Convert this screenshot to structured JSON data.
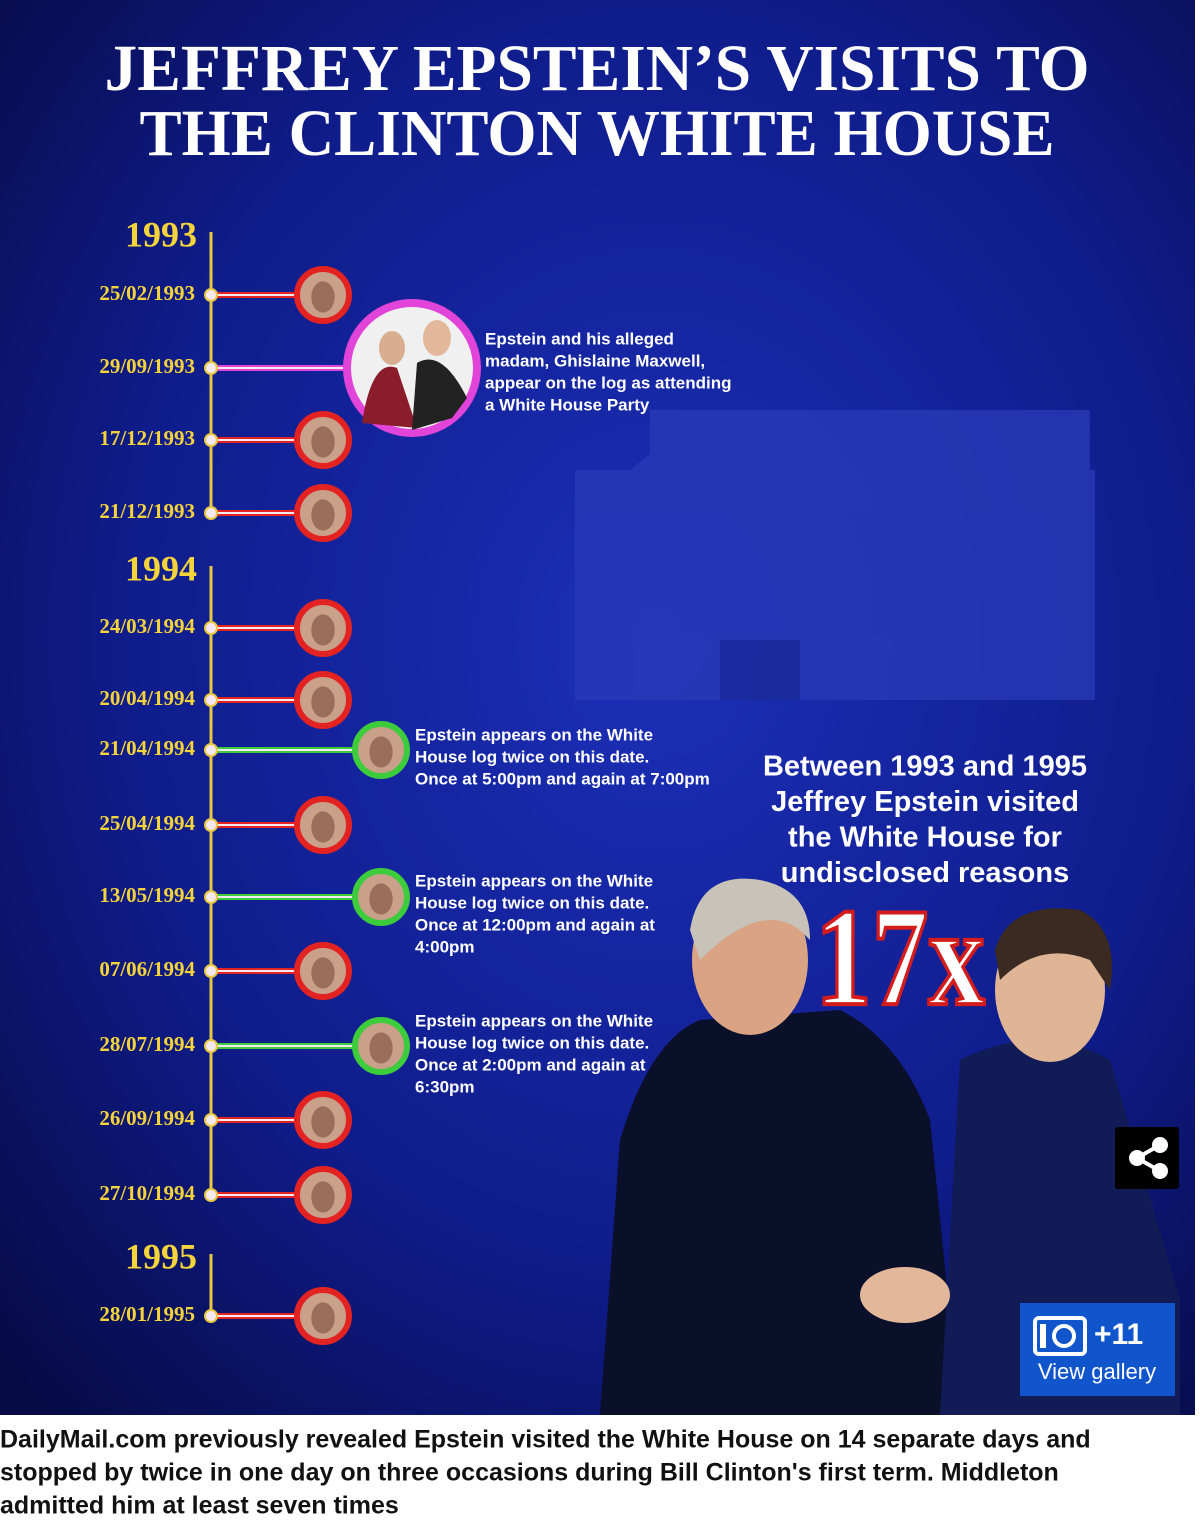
{
  "title": [
    "JEFFREY EPSTEIN’S VISITS TO",
    "THE CLINTON WHITE HOUSE"
  ],
  "timeline": [
    {
      "year": "1993",
      "visits": [
        {
          "date": "25/02/1993",
          "color": "#e32222"
        },
        {
          "date": "29/09/1993",
          "color": "#e044d8",
          "note": [
            "Epstein and his alleged",
            "madam, Ghislaine Maxwell,",
            "appear on the log as attending",
            "a White House Party"
          ]
        },
        {
          "date": "17/12/1993",
          "color": "#e32222"
        },
        {
          "date": "21/12/1993",
          "color": "#e32222"
        }
      ]
    },
    {
      "year": "1994",
      "visits": [
        {
          "date": "24/03/1994",
          "color": "#e32222"
        },
        {
          "date": "20/04/1994",
          "color": "#e32222"
        },
        {
          "date": "21/04/1994",
          "color": "#3ccc3c",
          "note": [
            "Epstein appears on the White",
            "House log twice on this date.",
            "Once at 5:00pm and again at 7:00pm"
          ]
        },
        {
          "date": "25/04/1994",
          "color": "#e32222"
        },
        {
          "date": "13/05/1994",
          "color": "#3ccc3c",
          "note": [
            "Epstein appears on the White",
            "House log twice on this date.",
            "Once at 12:00pm and again at",
            "4:00pm"
          ]
        },
        {
          "date": "07/06/1994",
          "color": "#e32222"
        },
        {
          "date": "28/07/1994",
          "color": "#3ccc3c",
          "note": [
            "Epstein appears on the White",
            "House log twice on this date.",
            "Once at 2:00pm and again at",
            "6:30pm"
          ]
        },
        {
          "date": "26/09/1994",
          "color": "#e32222"
        },
        {
          "date": "27/10/1994",
          "color": "#e32222"
        }
      ]
    },
    {
      "year": "1995",
      "visits": [
        {
          "date": "28/01/1995",
          "color": "#e32222"
        }
      ]
    }
  ],
  "summary": [
    "Between 1993 and 1995",
    "Jeffrey Epstein visited",
    "the White House for",
    "undisclosed reasons"
  ],
  "highlight": "17x",
  "gallery": {
    "count": "+11",
    "label": "View gallery"
  },
  "caption": [
    "DailyMail.com previously revealed Epstein visited the White House on 14 separate days and",
    "stopped by twice in one day on three occasions during Bill Clinton's first term. Middleton",
    "admitted him at least seven times"
  ]
}
